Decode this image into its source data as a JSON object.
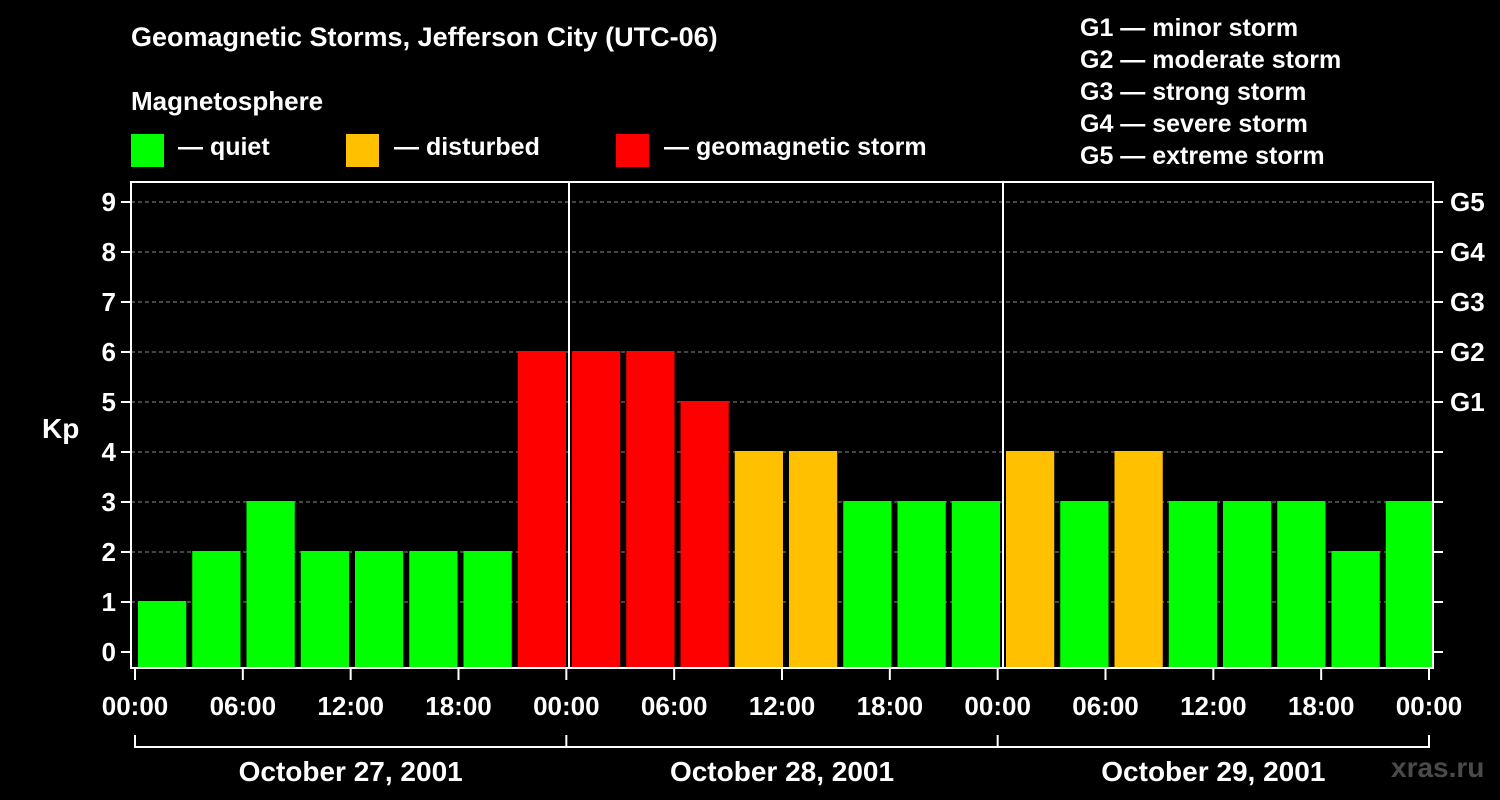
{
  "chart_data": {
    "type": "bar",
    "title": "Geomagnetic Storms, Jefferson City (UTC-06)",
    "ylabel": "Kp",
    "ylim": [
      0,
      9
    ],
    "yticks": [
      "0",
      "1",
      "2",
      "3",
      "4",
      "5",
      "6",
      "7",
      "8",
      "9"
    ],
    "right_axis": [
      {
        "label": "G1",
        "kp": 5
      },
      {
        "label": "G2",
        "kp": 6
      },
      {
        "label": "G3",
        "kp": 7
      },
      {
        "label": "G4",
        "kp": 8
      },
      {
        "label": "G5",
        "kp": 9
      }
    ],
    "x_tick_labels": [
      "00:00",
      "06:00",
      "12:00",
      "18:00",
      "00:00",
      "06:00",
      "12:00",
      "18:00",
      "00:00",
      "06:00",
      "12:00",
      "18:00",
      "00:00"
    ],
    "days": [
      "October 27, 2001",
      "October 28, 2001",
      "October 29, 2001"
    ],
    "interval_hours": 3,
    "values": [
      1,
      2,
      3,
      2,
      2,
      2,
      2,
      6,
      6,
      6,
      5,
      4,
      4,
      3,
      3,
      3,
      4,
      3,
      4,
      3,
      3,
      3,
      2,
      3
    ],
    "level_colors": {
      "quiet": "#00ff00",
      "disturbed": "#ffc000",
      "storm": "#ff0000"
    },
    "thresholds": {
      "disturbed_min": 4,
      "storm_min": 5
    }
  },
  "legend": {
    "heading": "Magnetosphere",
    "items": [
      {
        "key": "quiet",
        "label": "— quiet",
        "color": "#00ff00"
      },
      {
        "key": "disturbed",
        "label": "— disturbed",
        "color": "#ffc000"
      },
      {
        "key": "storm",
        "label": "— geomagnetic storm",
        "color": "#ff0000"
      }
    ]
  },
  "storm_scale": [
    "G1 — minor storm",
    "G2 — moderate storm",
    "G3 — strong storm",
    "G4 — severe storm",
    "G5 — extreme storm"
  ],
  "watermark": "xras.ru"
}
